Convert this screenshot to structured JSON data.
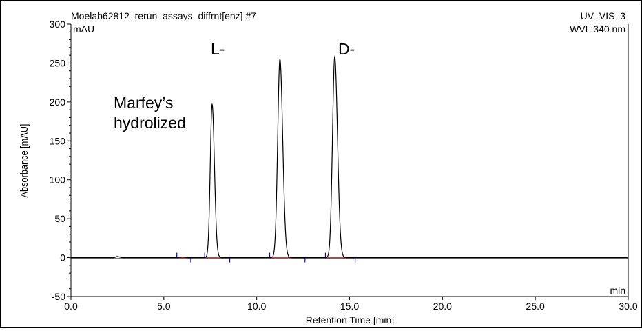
{
  "header": {
    "sample_name": "Moelab62812_rerun_assays_diffrnt[enz] #7",
    "channel": "UV_VIS_3",
    "wavelength": "WVL:340 nm",
    "y_unit": "mAU",
    "x_unit": "min"
  },
  "annotations": {
    "marfey_line1": "Marfey’s",
    "marfey_line2": "hydrolized",
    "peak_l": "L-",
    "peak_d": "D-"
  },
  "chart_data": {
    "type": "line",
    "xlabel": "Retention Time [min]",
    "ylabel": "Absorbance [mAU]",
    "xlim": [
      0.0,
      30.0
    ],
    "ylim": [
      -50,
      300
    ],
    "x_ticks": [
      0.0,
      5.0,
      10.0,
      15.0,
      20.0,
      25.0,
      30.0
    ],
    "x_tick_labels": [
      "0.0",
      "5.0",
      "10.0",
      "15.0",
      "20.0",
      "25.0",
      "30.0"
    ],
    "y_ticks": [
      -50,
      0,
      50,
      100,
      150,
      200,
      250,
      300
    ],
    "y_tick_labels": [
      "-50",
      "0",
      "50",
      "100",
      "150",
      "200",
      "250",
      "300"
    ],
    "grid": false,
    "series": [
      {
        "color": "#000000",
        "peaks": [
          {
            "rt": 2.5,
            "height": 1.5,
            "width": 0.08
          },
          {
            "rt": 6.0,
            "height": 0.8,
            "width": 0.1
          },
          {
            "rt": 7.6,
            "height": 197,
            "width": 0.1
          },
          {
            "rt": 11.25,
            "height": 255,
            "width": 0.12
          },
          {
            "rt": 14.2,
            "height": 258,
            "width": 0.12
          }
        ]
      }
    ],
    "integration_baseline": {
      "color": "#ff0000",
      "segments": [
        [
          5.7,
          6.5
        ],
        [
          7.2,
          8.5
        ],
        [
          10.7,
          12.6
        ],
        [
          13.7,
          15.3
        ]
      ]
    },
    "integration_markers": {
      "color": "#0000cc",
      "start_times": [
        5.7,
        7.2,
        10.7,
        13.7
      ],
      "end_times": [
        6.45,
        8.55,
        12.6,
        15.3
      ]
    }
  }
}
